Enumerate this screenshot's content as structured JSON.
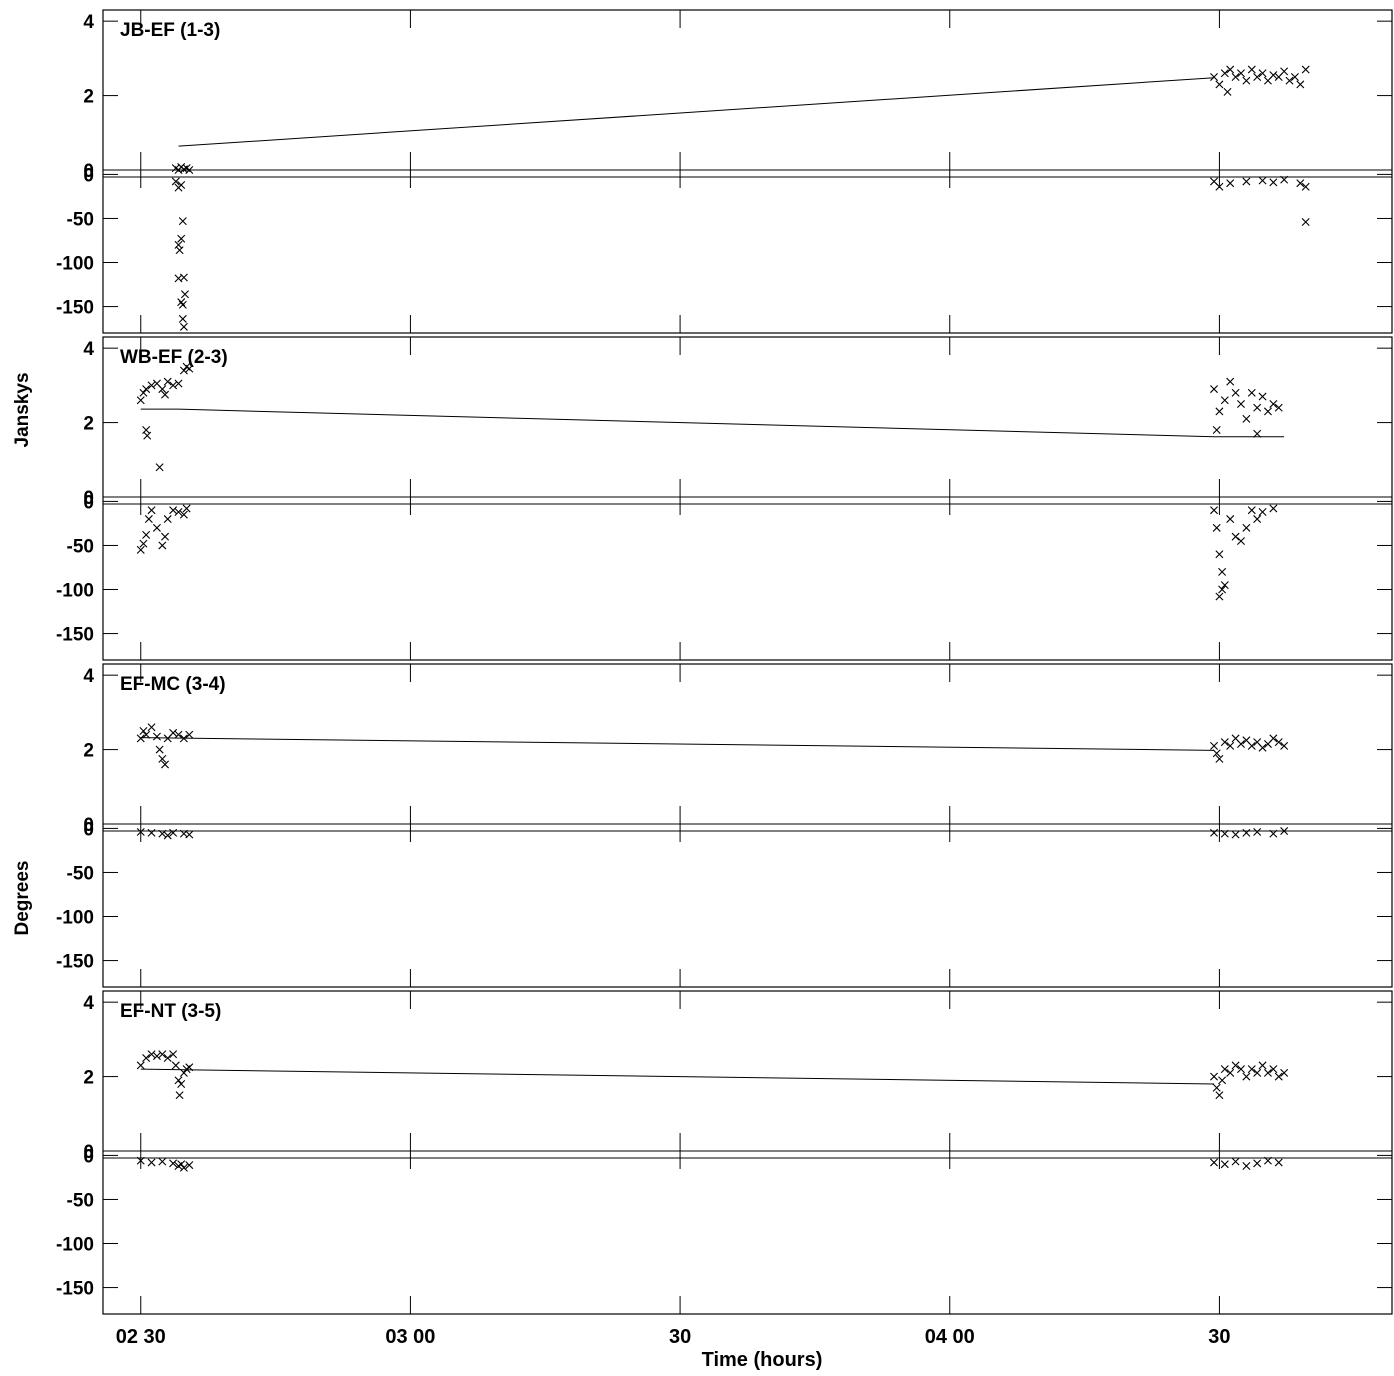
{
  "chart_data": {
    "type": "scatter",
    "x_axis": {
      "label": "Time (hours)",
      "range_hours": [
        2.43,
        4.82
      ],
      "ticks": [
        {
          "value": 2.5,
          "label": "02 30"
        },
        {
          "value": 3.0,
          "label": "03 00"
        },
        {
          "value": 3.5,
          "label": "30"
        },
        {
          "value": 4.0,
          "label": "04 00"
        },
        {
          "value": 4.5,
          "label": "30"
        }
      ]
    },
    "y_labels": {
      "amplitude": "Janskys",
      "phase": "Degrees"
    },
    "amplitude_axis": {
      "range": [
        0,
        4.3
      ],
      "ticks": [
        {
          "value": 4,
          "label": "4"
        },
        {
          "value": 2,
          "label": "2"
        },
        {
          "value": 0,
          "label": "0"
        }
      ]
    },
    "phase_axis": {
      "range": [
        -180,
        5
      ],
      "ticks": [
        {
          "value": 0,
          "label": "0"
        },
        {
          "value": -50,
          "label": "-50"
        },
        {
          "value": -100,
          "label": "-100"
        },
        {
          "value": -150,
          "label": "-150"
        }
      ]
    },
    "panels": [
      {
        "title": "JB-EF (1-3)",
        "model_amplitude": [
          [
            2.57,
            0.64
          ],
          [
            4.49,
            2.48
          ]
        ],
        "model_phase": [
          [
            2.43,
            -3
          ],
          [
            4.82,
            -3
          ]
        ],
        "amplitude_points": [
          [
            2.565,
            0.05
          ],
          [
            2.57,
            0.0
          ],
          [
            2.575,
            0.08
          ],
          [
            2.58,
            0.02
          ],
          [
            2.585,
            0.05
          ],
          [
            2.59,
            0.0
          ],
          [
            4.49,
            2.5
          ],
          [
            4.5,
            2.3
          ],
          [
            4.51,
            2.6
          ],
          [
            4.515,
            2.1
          ],
          [
            4.52,
            2.7
          ],
          [
            4.53,
            2.5
          ],
          [
            4.54,
            2.6
          ],
          [
            4.55,
            2.4
          ],
          [
            4.56,
            2.7
          ],
          [
            4.57,
            2.5
          ],
          [
            4.58,
            2.6
          ],
          [
            4.59,
            2.4
          ],
          [
            4.6,
            2.55
          ],
          [
            4.61,
            2.5
          ],
          [
            4.62,
            2.65
          ],
          [
            4.63,
            2.4
          ],
          [
            4.64,
            2.5
          ],
          [
            4.65,
            2.3
          ],
          [
            4.66,
            2.7
          ]
        ],
        "phase_points": [
          [
            2.565,
            -8
          ],
          [
            2.57,
            -15
          ],
          [
            2.575,
            -12
          ],
          [
            2.578,
            -53
          ],
          [
            2.57,
            -80
          ],
          [
            2.575,
            -73
          ],
          [
            2.572,
            -86
          ],
          [
            2.57,
            -118
          ],
          [
            2.58,
            -117
          ],
          [
            2.575,
            -145
          ],
          [
            2.578,
            -148
          ],
          [
            2.582,
            -136
          ],
          [
            2.578,
            -164
          ],
          [
            2.58,
            -173
          ],
          [
            4.49,
            -8
          ],
          [
            4.5,
            -14
          ],
          [
            4.52,
            -10
          ],
          [
            4.55,
            -8
          ],
          [
            4.58,
            -7
          ],
          [
            4.6,
            -9
          ],
          [
            4.62,
            -6
          ],
          [
            4.65,
            -10
          ],
          [
            4.66,
            -14
          ],
          [
            4.66,
            -54
          ]
        ]
      },
      {
        "title": "WB-EF (2-3)",
        "model_amplitude": [
          [
            2.5,
            2.36
          ],
          [
            2.57,
            2.36
          ],
          [
            4.49,
            1.62
          ],
          [
            4.62,
            1.62
          ]
        ],
        "model_phase": [
          [
            2.43,
            -3
          ],
          [
            4.82,
            -3
          ]
        ],
        "amplitude_points": [
          [
            2.5,
            2.6
          ],
          [
            2.505,
            2.8
          ],
          [
            2.51,
            2.9
          ],
          [
            2.51,
            1.8
          ],
          [
            2.512,
            1.65
          ],
          [
            2.52,
            3.0
          ],
          [
            2.53,
            3.05
          ],
          [
            2.54,
            2.9
          ],
          [
            2.55,
            3.1
          ],
          [
            2.56,
            3.0
          ],
          [
            2.57,
            3.05
          ],
          [
            2.58,
            3.4
          ],
          [
            2.585,
            3.5
          ],
          [
            2.59,
            3.45
          ],
          [
            2.535,
            0.8
          ],
          [
            2.545,
            2.75
          ],
          [
            4.49,
            2.9
          ],
          [
            4.5,
            2.3
          ],
          [
            4.51,
            2.6
          ],
          [
            4.52,
            3.1
          ],
          [
            4.53,
            2.8
          ],
          [
            4.54,
            2.5
          ],
          [
            4.55,
            2.1
          ],
          [
            4.56,
            2.8
          ],
          [
            4.57,
            2.4
          ],
          [
            4.58,
            2.7
          ],
          [
            4.59,
            2.3
          ],
          [
            4.6,
            2.5
          ],
          [
            4.61,
            2.4
          ],
          [
            4.495,
            1.8
          ],
          [
            4.57,
            1.7
          ]
        ],
        "phase_points": [
          [
            2.5,
            -55
          ],
          [
            2.505,
            -48
          ],
          [
            2.51,
            -38
          ],
          [
            2.515,
            -20
          ],
          [
            2.52,
            -10
          ],
          [
            2.53,
            -30
          ],
          [
            2.54,
            -50
          ],
          [
            2.545,
            -40
          ],
          [
            2.55,
            -20
          ],
          [
            2.56,
            -10
          ],
          [
            2.57,
            -12
          ],
          [
            2.58,
            -15
          ],
          [
            2.585,
            -8
          ],
          [
            4.49,
            -10
          ],
          [
            4.495,
            -30
          ],
          [
            4.5,
            -60
          ],
          [
            4.505,
            -80
          ],
          [
            4.51,
            -95
          ],
          [
            4.5,
            -108
          ],
          [
            4.505,
            -100
          ],
          [
            4.52,
            -20
          ],
          [
            4.53,
            -40
          ],
          [
            4.54,
            -45
          ],
          [
            4.55,
            -30
          ],
          [
            4.56,
            -10
          ],
          [
            4.57,
            -20
          ],
          [
            4.58,
            -12
          ],
          [
            4.6,
            -8
          ]
        ]
      },
      {
        "title": "EF-MC (3-4)",
        "model_amplitude": [
          [
            2.5,
            2.32
          ],
          [
            4.49,
            1.98
          ]
        ],
        "model_phase": [
          [
            2.43,
            -3
          ],
          [
            4.82,
            -3
          ]
        ],
        "amplitude_points": [
          [
            2.5,
            2.3
          ],
          [
            2.505,
            2.5
          ],
          [
            2.51,
            2.4
          ],
          [
            2.52,
            2.6
          ],
          [
            2.53,
            2.35
          ],
          [
            2.535,
            2.0
          ],
          [
            2.54,
            1.75
          ],
          [
            2.545,
            1.6
          ],
          [
            2.55,
            2.3
          ],
          [
            2.56,
            2.45
          ],
          [
            2.57,
            2.4
          ],
          [
            2.58,
            2.3
          ],
          [
            2.59,
            2.4
          ],
          [
            4.49,
            2.1
          ],
          [
            4.495,
            1.9
          ],
          [
            4.5,
            1.75
          ],
          [
            4.51,
            2.2
          ],
          [
            4.52,
            2.1
          ],
          [
            4.53,
            2.3
          ],
          [
            4.54,
            2.15
          ],
          [
            4.55,
            2.25
          ],
          [
            4.56,
            2.1
          ],
          [
            4.57,
            2.2
          ],
          [
            4.58,
            2.05
          ],
          [
            4.59,
            2.15
          ],
          [
            4.6,
            2.3
          ],
          [
            4.61,
            2.2
          ],
          [
            4.62,
            2.1
          ]
        ],
        "phase_points": [
          [
            2.5,
            -4
          ],
          [
            2.52,
            -5
          ],
          [
            2.54,
            -6
          ],
          [
            2.55,
            -8
          ],
          [
            2.56,
            -5
          ],
          [
            2.58,
            -6
          ],
          [
            2.59,
            -7
          ],
          [
            4.49,
            -5
          ],
          [
            4.51,
            -6
          ],
          [
            4.53,
            -7
          ],
          [
            4.55,
            -5
          ],
          [
            4.57,
            -4
          ],
          [
            4.6,
            -6
          ],
          [
            4.62,
            -3
          ]
        ]
      },
      {
        "title": "EF-NT (3-5)",
        "model_amplitude": [
          [
            2.5,
            2.2
          ],
          [
            4.49,
            1.8
          ]
        ],
        "model_phase": [
          [
            2.43,
            -3
          ],
          [
            4.82,
            -3
          ]
        ],
        "amplitude_points": [
          [
            2.5,
            2.3
          ],
          [
            2.51,
            2.5
          ],
          [
            2.52,
            2.6
          ],
          [
            2.53,
            2.55
          ],
          [
            2.54,
            2.6
          ],
          [
            2.55,
            2.5
          ],
          [
            2.56,
            2.6
          ],
          [
            2.565,
            2.3
          ],
          [
            2.57,
            1.9
          ],
          [
            2.572,
            1.5
          ],
          [
            2.575,
            1.8
          ],
          [
            2.58,
            2.1
          ],
          [
            2.585,
            2.2
          ],
          [
            2.59,
            2.25
          ],
          [
            4.49,
            2.0
          ],
          [
            4.495,
            1.7
          ],
          [
            4.5,
            1.5
          ],
          [
            4.505,
            1.9
          ],
          [
            4.51,
            2.2
          ],
          [
            4.52,
            2.1
          ],
          [
            4.53,
            2.3
          ],
          [
            4.54,
            2.2
          ],
          [
            4.55,
            2.0
          ],
          [
            4.56,
            2.2
          ],
          [
            4.57,
            2.1
          ],
          [
            4.58,
            2.3
          ],
          [
            4.59,
            2.1
          ],
          [
            4.6,
            2.2
          ],
          [
            4.61,
            2.0
          ],
          [
            4.62,
            2.1
          ]
        ],
        "phase_points": [
          [
            2.5,
            -6
          ],
          [
            2.52,
            -8
          ],
          [
            2.54,
            -7
          ],
          [
            2.56,
            -9
          ],
          [
            2.57,
            -12
          ],
          [
            2.575,
            -10
          ],
          [
            2.58,
            -14
          ],
          [
            2.59,
            -11
          ],
          [
            4.49,
            -8
          ],
          [
            4.51,
            -10
          ],
          [
            4.53,
            -7
          ],
          [
            4.55,
            -12
          ],
          [
            4.57,
            -9
          ],
          [
            4.59,
            -6
          ],
          [
            4.61,
            -8
          ]
        ]
      }
    ]
  }
}
